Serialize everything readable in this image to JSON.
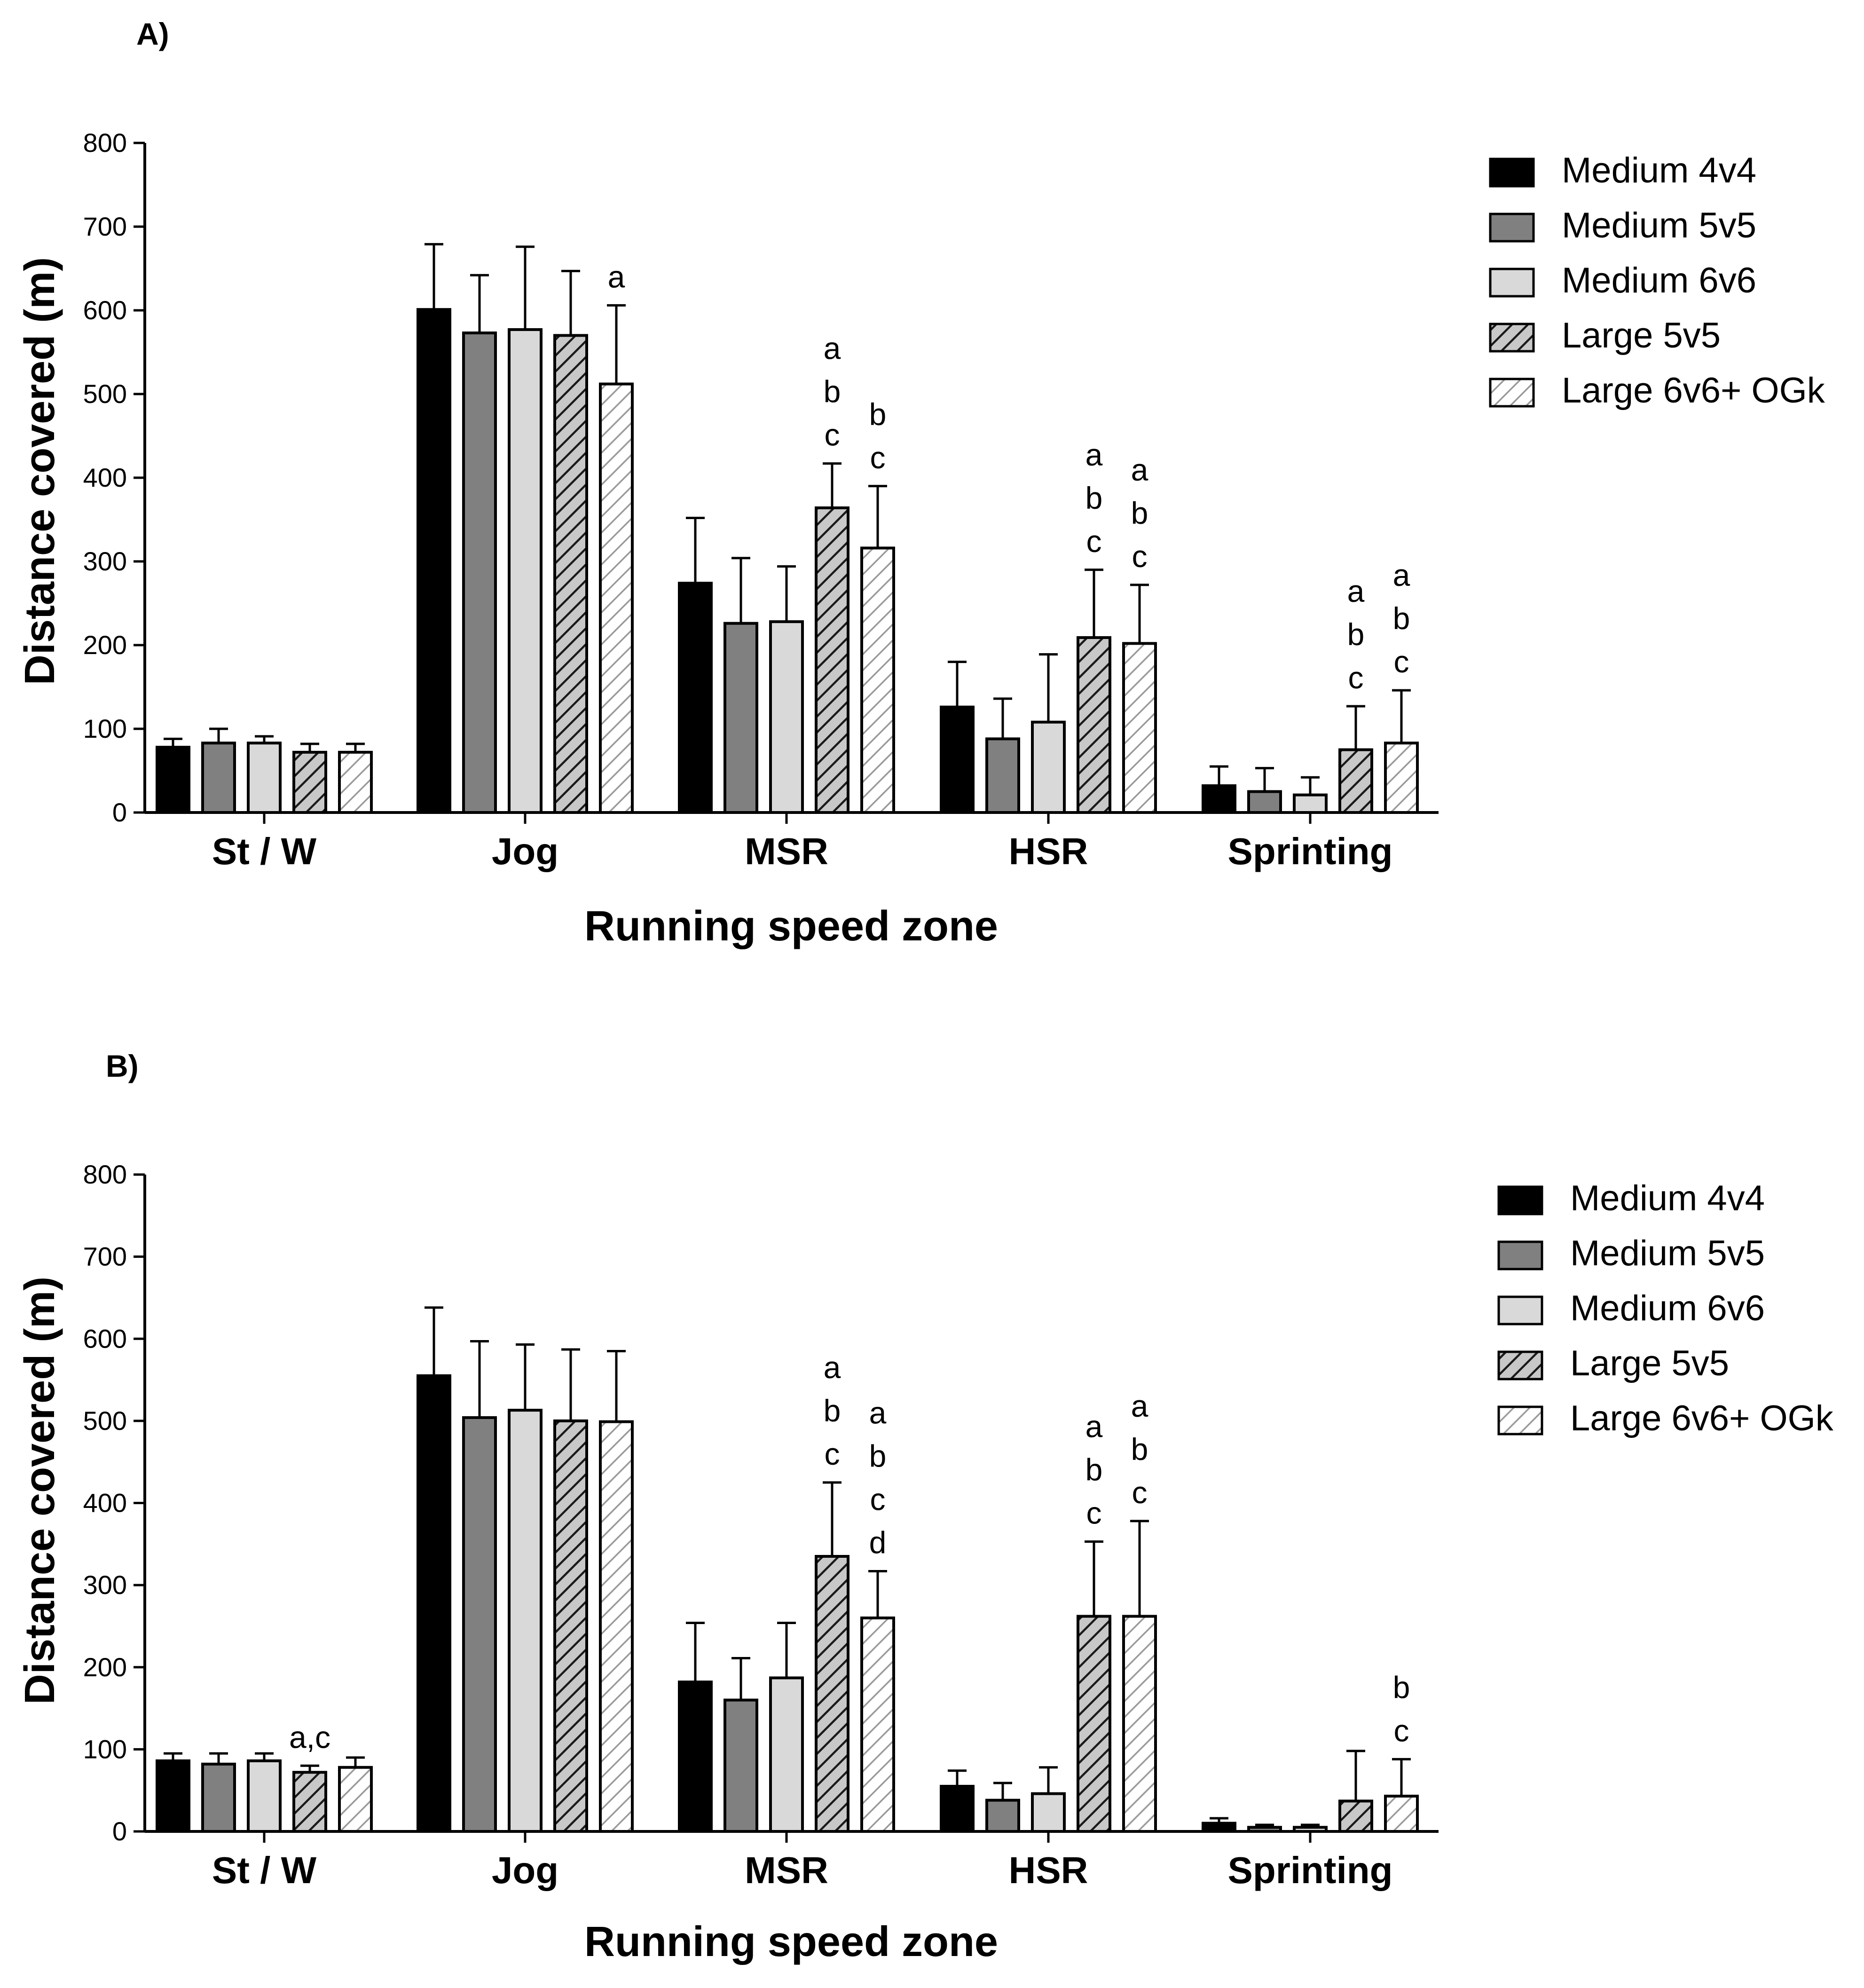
{
  "chart_data": [
    {
      "type": "bar",
      "panel_label": "A)",
      "xlabel": "Running speed zone",
      "ylabel": "Distance covered (m)",
      "ylim": [
        0,
        800
      ],
      "yticks": [
        0,
        100,
        200,
        300,
        400,
        500,
        600,
        700,
        800
      ],
      "categories": [
        "St / W",
        "Jog",
        "MSR",
        "HSR",
        "Sprinting"
      ],
      "legend_position": "right",
      "series": [
        {
          "name": "Medium 4v4",
          "fill": "#000000",
          "pattern": "solid",
          "values": [
            78,
            601,
            274,
            126,
            32
          ],
          "errors": [
            10,
            78,
            78,
            54,
            23
          ],
          "letters": [
            "",
            "",
            "",
            "",
            ""
          ]
        },
        {
          "name": "Medium 5v5",
          "fill": "#808080",
          "pattern": "solid",
          "values": [
            83,
            573,
            226,
            88,
            25
          ],
          "errors": [
            17,
            69,
            78,
            48,
            28
          ],
          "letters": [
            "",
            "",
            "",
            "",
            ""
          ]
        },
        {
          "name": "Medium 6v6",
          "fill": "#d9d9d9",
          "pattern": "solid",
          "values": [
            83,
            577,
            228,
            108,
            21
          ],
          "errors": [
            8,
            99,
            66,
            81,
            21
          ],
          "letters": [
            "",
            "",
            "",
            "",
            ""
          ]
        },
        {
          "name": "Large 5v5",
          "fill": "#c8c8c8",
          "pattern": "dense-hatch",
          "values": [
            72,
            570,
            364,
            209,
            75
          ],
          "errors": [
            10,
            77,
            53,
            81,
            52
          ],
          "letters": [
            "",
            "",
            "a b c",
            "a b c",
            "a b c"
          ]
        },
        {
          "name": "Large 6v6+ OGk",
          "fill": "#ffffff",
          "pattern": "light-hatch",
          "values": [
            72,
            512,
            316,
            202,
            83
          ],
          "errors": [
            10,
            94,
            74,
            70,
            63
          ],
          "letters": [
            "",
            "a",
            "b c",
            "a b c",
            "a b c"
          ]
        }
      ]
    },
    {
      "type": "bar",
      "panel_label": "B)",
      "xlabel": "Running speed zone",
      "ylabel": "Distance covered (m)",
      "ylim": [
        0,
        800
      ],
      "yticks": [
        0,
        100,
        200,
        300,
        400,
        500,
        600,
        700,
        800
      ],
      "categories": [
        "St / W",
        "Jog",
        "MSR",
        "HSR",
        "Sprinting"
      ],
      "legend_position": "right",
      "series": [
        {
          "name": "Medium 4v4",
          "fill": "#000000",
          "pattern": "solid",
          "values": [
            86,
            555,
            182,
            55,
            10
          ],
          "errors": [
            9,
            83,
            72,
            19,
            6
          ],
          "letters": [
            "",
            "",
            "",
            "",
            ""
          ]
        },
        {
          "name": "Medium 5v5",
          "fill": "#808080",
          "pattern": "solid",
          "values": [
            82,
            504,
            160,
            38,
            5
          ],
          "errors": [
            13,
            93,
            51,
            21,
            3
          ],
          "letters": [
            "",
            "",
            "",
            "",
            ""
          ]
        },
        {
          "name": "Medium 6v6",
          "fill": "#d9d9d9",
          "pattern": "solid",
          "values": [
            86,
            513,
            187,
            46,
            5
          ],
          "errors": [
            9,
            80,
            67,
            32,
            3
          ],
          "letters": [
            "",
            "",
            "",
            "",
            ""
          ]
        },
        {
          "name": "Large 5v5",
          "fill": "#c8c8c8",
          "pattern": "dense-hatch",
          "values": [
            72,
            500,
            335,
            262,
            37
          ],
          "errors": [
            8,
            87,
            90,
            91,
            61
          ],
          "letters": [
            "a,c",
            "",
            "a b c",
            "a b c",
            ""
          ]
        },
        {
          "name": "Large 6v6+ OGk",
          "fill": "#ffffff",
          "pattern": "light-hatch",
          "values": [
            78,
            499,
            260,
            262,
            43
          ],
          "errors": [
            12,
            86,
            57,
            116,
            45
          ],
          "letters": [
            "",
            "",
            "a b c d",
            "a b c",
            "b c"
          ]
        }
      ]
    }
  ]
}
